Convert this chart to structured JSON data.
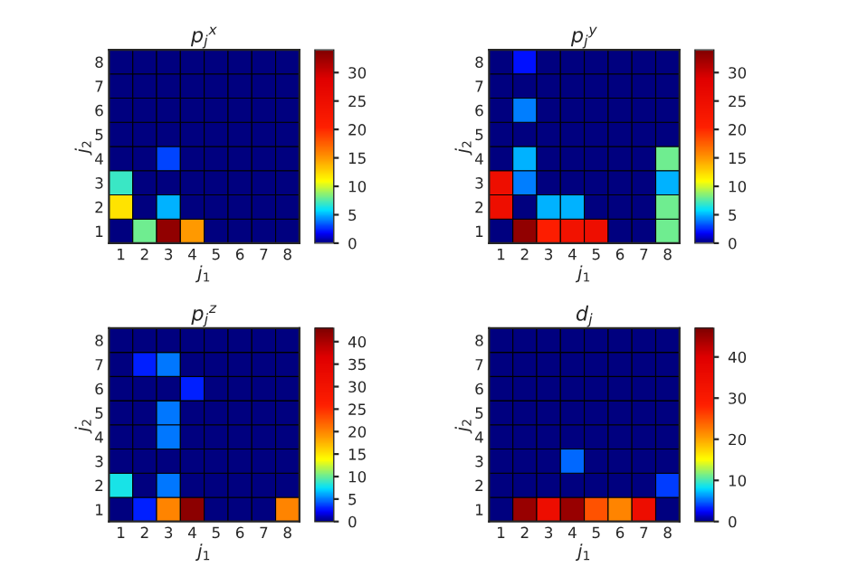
{
  "chart_data": [
    {
      "type": "heatmap",
      "title": "p$_{j}$$^{x}$",
      "xlabel": "j$_{1}$",
      "ylabel": "j$_{2}$",
      "categories": [
        "1",
        "2",
        "3",
        "4",
        "5",
        "6",
        "7",
        "8"
      ],
      "y_categories": [
        "8",
        "7",
        "6",
        "5",
        "4",
        "3",
        "2",
        "1"
      ],
      "clim": [
        0,
        34
      ],
      "cticks": [
        0,
        5,
        10,
        15,
        20,
        25,
        30
      ],
      "cells": [
        [
          0,
          0,
          0,
          0,
          0,
          0,
          0,
          0
        ],
        [
          0,
          0,
          0,
          0,
          0,
          0,
          0,
          0
        ],
        [
          0,
          0,
          0,
          0,
          0,
          0,
          0,
          0
        ],
        [
          0,
          0,
          0,
          0,
          0,
          0,
          0,
          0
        ],
        [
          0,
          0,
          3,
          0,
          0,
          0,
          0,
          0
        ],
        [
          7,
          0,
          0,
          0,
          0,
          0,
          0,
          0
        ],
        [
          12,
          0,
          5,
          0,
          0,
          0,
          0,
          0
        ],
        [
          0,
          8,
          33,
          15,
          0,
          0,
          0,
          0
        ]
      ]
    },
    {
      "type": "heatmap",
      "title": "p$_{j}$$^{y}$",
      "xlabel": "j$_{1}$",
      "ylabel": "j$_{2}$",
      "categories": [
        "1",
        "2",
        "3",
        "4",
        "5",
        "6",
        "7",
        "8"
      ],
      "y_categories": [
        "8",
        "7",
        "6",
        "5",
        "4",
        "3",
        "2",
        "1"
      ],
      "clim": [
        0,
        34
      ],
      "cticks": [
        0,
        5,
        10,
        15,
        20,
        25,
        30
      ],
      "cells": [
        [
          0,
          2,
          0,
          0,
          0,
          0,
          0,
          0
        ],
        [
          0,
          0,
          0,
          0,
          0,
          0,
          0,
          0
        ],
        [
          0,
          4,
          0,
          0,
          0,
          0,
          0,
          0
        ],
        [
          0,
          0,
          0,
          0,
          0,
          0,
          0,
          0
        ],
        [
          0,
          5,
          0,
          0,
          0,
          0,
          0,
          8
        ],
        [
          25,
          4,
          0,
          0,
          0,
          0,
          0,
          5
        ],
        [
          25,
          0,
          5,
          5,
          0,
          0,
          0,
          8
        ],
        [
          0,
          33,
          21,
          24,
          25,
          0,
          0,
          8
        ]
      ]
    },
    {
      "type": "heatmap",
      "title": "p$_{j}$$^{z}$",
      "xlabel": "j$_{1}$",
      "ylabel": "j$_{2}$",
      "categories": [
        "1",
        "2",
        "3",
        "4",
        "5",
        "6",
        "7",
        "8"
      ],
      "y_categories": [
        "8",
        "7",
        "6",
        "5",
        "4",
        "3",
        "2",
        "1"
      ],
      "clim": [
        0,
        43
      ],
      "cticks": [
        0,
        5,
        10,
        15,
        20,
        25,
        30,
        35,
        40
      ],
      "cells": [
        [
          0,
          0,
          0,
          0,
          0,
          0,
          0,
          0
        ],
        [
          0,
          3,
          5,
          0,
          0,
          0,
          0,
          0
        ],
        [
          0,
          0,
          0,
          3,
          0,
          0,
          0,
          0
        ],
        [
          0,
          0,
          5,
          0,
          0,
          0,
          0,
          0
        ],
        [
          0,
          0,
          5,
          0,
          0,
          0,
          0,
          0
        ],
        [
          0,
          0,
          0,
          0,
          0,
          0,
          0,
          0
        ],
        [
          8,
          0,
          5,
          0,
          0,
          0,
          0,
          0
        ],
        [
          0,
          3,
          20,
          42,
          0,
          0,
          0,
          20
        ]
      ]
    },
    {
      "type": "heatmap",
      "title": "d$_{j}$",
      "xlabel": "j$_{1}$",
      "ylabel": "j$_{2}$",
      "categories": [
        "1",
        "2",
        "3",
        "4",
        "5",
        "6",
        "7",
        "8"
      ],
      "y_categories": [
        "8",
        "7",
        "6",
        "5",
        "4",
        "3",
        "2",
        "1"
      ],
      "clim": [
        0,
        47
      ],
      "cticks": [
        0,
        10,
        20,
        30,
        40
      ],
      "cells": [
        [
          0,
          0,
          0,
          0,
          0,
          0,
          0,
          0
        ],
        [
          0,
          0,
          0,
          0,
          0,
          0,
          0,
          0
        ],
        [
          0,
          0,
          0,
          0,
          0,
          0,
          0,
          0
        ],
        [
          0,
          0,
          0,
          0,
          0,
          0,
          0,
          0
        ],
        [
          0,
          0,
          0,
          0,
          0,
          0,
          0,
          0
        ],
        [
          0,
          0,
          0,
          5,
          0,
          0,
          0,
          0
        ],
        [
          0,
          0,
          0,
          0,
          0,
          0,
          0,
          4
        ],
        [
          0,
          45,
          35,
          45,
          25,
          22,
          35,
          0
        ]
      ]
    }
  ]
}
